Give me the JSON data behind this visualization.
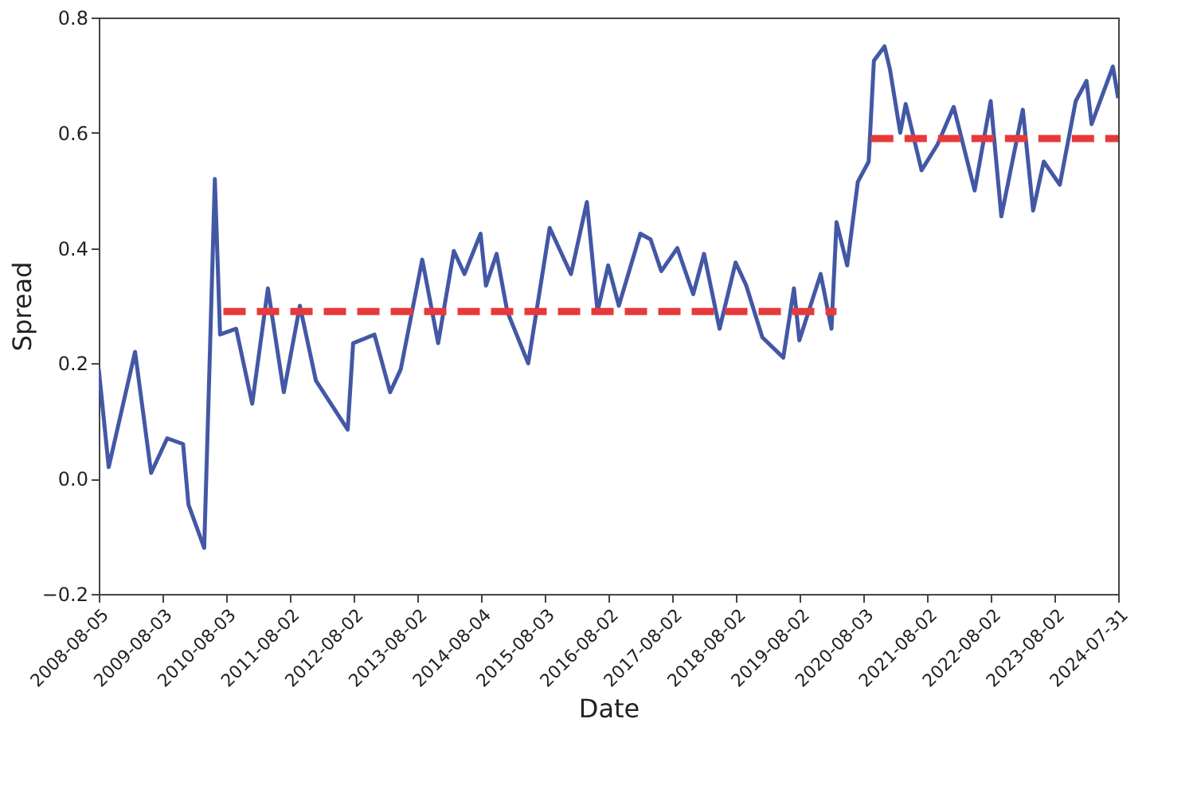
{
  "chart_data": {
    "type": "line",
    "xlabel": "Date",
    "ylabel": "Spread",
    "xlim": [
      "2008-08-05",
      "2024-07-31"
    ],
    "xticks": [
      "2008-08-05",
      "2009-08-03",
      "2010-08-03",
      "2011-08-02",
      "2012-08-02",
      "2013-08-02",
      "2014-08-04",
      "2015-08-03",
      "2016-08-02",
      "2017-08-02",
      "2018-08-02",
      "2019-08-02",
      "2020-08-03",
      "2021-08-02",
      "2022-08-02",
      "2023-08-02",
      "2024-07-31"
    ],
    "ylim": [
      -0.2,
      0.8
    ],
    "yticks": [
      {
        "value": -0.2,
        "label": "−0.2"
      },
      {
        "value": 0,
        "label": "0.0"
      },
      0.2,
      0.4,
      0.6,
      0.8
    ],
    "grid": false,
    "series": [
      {
        "color": "#4358a5",
        "line_style": "solid",
        "x": [
          "2008-08-05",
          "2008-10",
          "2009-03",
          "2009-06",
          "2009-09",
          "2009-12",
          "2010-01",
          "2010-04",
          "2010-05",
          "2010-06",
          "2010-07",
          "2010-10",
          "2011-01",
          "2011-04",
          "2011-07",
          "2011-10",
          "2012-01",
          "2012-07",
          "2012-08",
          "2012-12",
          "2013-03",
          "2013-05",
          "2013-09",
          "2013-12",
          "2014-03",
          "2014-05",
          "2014-08",
          "2014-09",
          "2014-11",
          "2015-01",
          "2015-05",
          "2015-09",
          "2016-01",
          "2016-04",
          "2016-06",
          "2016-08",
          "2016-10",
          "2017-02",
          "2017-04",
          "2017-06",
          "2017-09",
          "2017-12",
          "2018-02",
          "2018-05",
          "2018-08",
          "2018-10",
          "2019-01",
          "2019-05",
          "2019-07",
          "2019-08",
          "2019-12",
          "2020-02",
          "2020-03",
          "2020-05",
          "2020-07",
          "2020-09",
          "2020-10",
          "2020-12",
          "2021-01",
          "2021-03",
          "2021-04",
          "2021-07",
          "2021-10",
          "2022-01",
          "2022-05",
          "2022-08",
          "2022-10",
          "2023-02",
          "2023-04",
          "2023-06",
          "2023-09",
          "2023-12",
          "2024-02",
          "2024-03",
          "2024-07",
          "2024-07-31"
        ],
        "values": [
          0.19,
          0.02,
          0.22,
          0.01,
          0.07,
          0.06,
          -0.045,
          -0.12,
          0.19,
          0.52,
          0.25,
          0.26,
          0.13,
          0.33,
          0.15,
          0.3,
          0.17,
          0.085,
          0.235,
          0.25,
          0.15,
          0.19,
          0.38,
          0.235,
          0.395,
          0.355,
          0.425,
          0.335,
          0.39,
          0.29,
          0.2,
          0.435,
          0.355,
          0.48,
          0.29,
          0.37,
          0.3,
          0.425,
          0.415,
          0.36,
          0.4,
          0.32,
          0.39,
          0.26,
          0.375,
          0.335,
          0.245,
          0.21,
          0.33,
          0.24,
          0.355,
          0.26,
          0.445,
          0.37,
          0.515,
          0.55,
          0.725,
          0.75,
          0.71,
          0.6,
          0.65,
          0.535,
          0.58,
          0.645,
          0.5,
          0.655,
          0.455,
          0.64,
          0.465,
          0.55,
          0.51,
          0.655,
          0.69,
          0.615,
          0.715,
          0.66
        ]
      },
      {
        "color": "#e8393a",
        "line_style": "dashed",
        "x": [
          "2010-07-20",
          "2020-03-01"
        ],
        "values": [
          0.29,
          0.29
        ]
      },
      {
        "color": "#e8393a",
        "line_style": "dashed",
        "x": [
          "2020-09-15",
          "2024-07-31"
        ],
        "values": [
          0.59,
          0.59
        ]
      }
    ]
  }
}
